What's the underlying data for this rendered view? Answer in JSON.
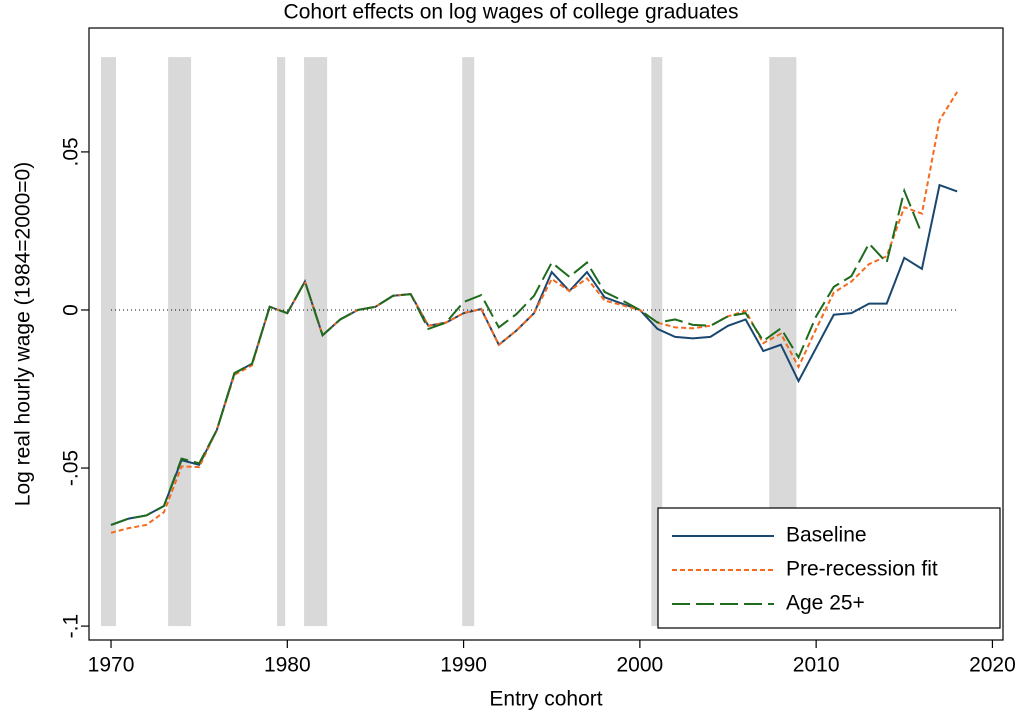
{
  "chart_data": {
    "type": "line",
    "title": "Cohort effects on log wages of college graduates",
    "x_label": "Entry cohort",
    "y_label": "Log real hourly wage (1984=2000=0)",
    "x": [
      1970,
      1971,
      1972,
      1973,
      1974,
      1975,
      1976,
      1977,
      1978,
      1979,
      1980,
      1981,
      1982,
      1983,
      1984,
      1985,
      1986,
      1987,
      1988,
      1989,
      1990,
      1991,
      1992,
      1993,
      1994,
      1995,
      1996,
      1997,
      1998,
      1999,
      2000,
      2001,
      2002,
      2003,
      2004,
      2005,
      2006,
      2007,
      2008,
      2009,
      2010,
      2011,
      2012,
      2013,
      2014,
      2015,
      2016,
      2017,
      2018
    ],
    "series": [
      {
        "name": "Baseline",
        "color": "#1a476f",
        "style": "solid",
        "values": [
          -0.068,
          -0.066,
          -0.065,
          -0.062,
          -0.0475,
          -0.049,
          -0.038,
          -0.02,
          -0.017,
          0.001,
          -0.001,
          0.009,
          -0.008,
          -0.003,
          0,
          0.001,
          0.0045,
          0.005,
          -0.005,
          -0.004,
          -0.001,
          0.0003,
          -0.011,
          -0.0065,
          -0.001,
          0.012,
          0.006,
          0.012,
          0.004,
          0.002,
          0,
          -0.006,
          -0.0085,
          -0.009,
          -0.0085,
          -0.005,
          -0.003,
          -0.013,
          -0.011,
          -0.0225,
          -0.012,
          -0.0015,
          -0.001,
          0.002,
          0.002,
          0.0165,
          0.013,
          0.0395,
          0.0375
        ]
      },
      {
        "name": "Pre-recession fit",
        "color": "#f46a1f",
        "style": "dotted",
        "values": [
          -0.0705,
          -0.069,
          -0.068,
          -0.064,
          -0.0495,
          -0.0497,
          -0.038,
          -0.0205,
          -0.0175,
          0.001,
          -0.001,
          0.009,
          -0.008,
          -0.003,
          0,
          0.001,
          0.0045,
          0.005,
          -0.005,
          -0.004,
          -0.001,
          0.0003,
          -0.011,
          -0.0065,
          -0.001,
          0.0098,
          0.006,
          0.01,
          0.003,
          0.0015,
          0,
          -0.004,
          -0.0055,
          -0.0058,
          -0.005,
          -0.002,
          -0.0003,
          -0.0105,
          -0.0075,
          -0.018,
          -0.006,
          0.0055,
          0.009,
          0.0145,
          0.017,
          0.0325,
          0.0305,
          0.06,
          0.069
        ]
      },
      {
        "name": "Age 25+",
        "color": "#1e6b1e",
        "style": "dashed",
        "values": [
          -0.068,
          -0.066,
          -0.065,
          -0.062,
          -0.047,
          -0.0485,
          -0.038,
          -0.02,
          -0.017,
          0.001,
          -0.001,
          0.009,
          -0.008,
          -0.003,
          0,
          0.001,
          0.0045,
          0.005,
          -0.006,
          -0.004,
          0.0025,
          0.0047,
          -0.0055,
          -0.0013,
          0.0045,
          0.015,
          0.0105,
          0.015,
          0.0057,
          0.003,
          0,
          -0.004,
          -0.003,
          -0.0047,
          -0.005,
          -0.002,
          -0.001,
          -0.0098,
          -0.0058,
          -0.015,
          -0.002,
          0.0073,
          0.0107,
          0.021,
          0.015,
          0.0377,
          0.024,
          null,
          null
        ]
      }
    ],
    "shaded_periods": [
      [
        1969.43,
        1970.28
      ],
      [
        1973.24,
        1974.54
      ],
      [
        1979.42,
        1979.88
      ],
      [
        1980.95,
        1982.26
      ],
      [
        1989.92,
        1990.6
      ],
      [
        2000.65,
        2001.27
      ],
      [
        2007.34,
        2008.88
      ]
    ],
    "shade_ylim": [
      -0.1,
      0.08
    ],
    "hline": 0,
    "xlim": [
      1968.75,
      2020.6
    ],
    "ylim": [
      -0.1044,
      0.0892
    ],
    "xticks": [
      1970,
      1980,
      1990,
      2000,
      2010,
      2020
    ],
    "yticks": [
      {
        "value": -0.1,
        "label": "-.1"
      },
      {
        "value": -0.05,
        "label": "-.05"
      },
      0,
      {
        "value": 0.05,
        "label": ".05"
      }
    ],
    "legend": "lower right"
  }
}
